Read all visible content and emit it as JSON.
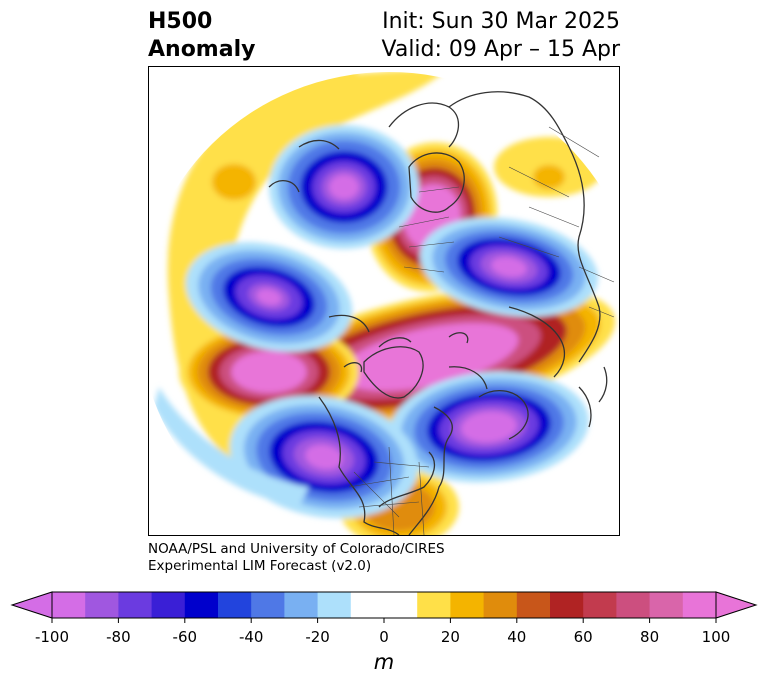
{
  "title": {
    "line1": "H500",
    "line2": "Anomaly",
    "init": "Init: Sun 30 Mar 2025",
    "valid": "Valid: 09 Apr – 15 Apr"
  },
  "credit": {
    "line1": "NOAA/PSL and University of Colorado/CIRES",
    "line2": "Experimental LIM Forecast (v2.0)"
  },
  "colorbar": {
    "unit": "m",
    "min": -100,
    "max": 100,
    "step": 10,
    "ticks": [
      "-100",
      "-80",
      "-60",
      "-40",
      "-20",
      "0",
      "20",
      "40",
      "60",
      "80",
      "100"
    ],
    "colors": [
      "#d46de6",
      "#a057e0",
      "#6b3be0",
      "#3a1fd6",
      "#0000cc",
      "#2244dd",
      "#4f78e6",
      "#79b0f2",
      "#ade0fb",
      "#ffffff",
      "#ffffff",
      "#ffe048",
      "#f4b400",
      "#e08c0c",
      "#c8561a",
      "#b02323",
      "#c23b4e",
      "#cc4f7f",
      "#d965aa",
      "#e874d8"
    ],
    "below_color": "#d46de6",
    "above_color": "#e874d8"
  },
  "anomaly_colors": {
    "neg_100": "#d46de6",
    "neg_90": "#a057e0",
    "neg_70": "#6b3be0",
    "neg_60": "#0000cc",
    "neg_40": "#4f78e6",
    "neg_20": "#79b0f2",
    "neg_10": "#ade0fb",
    "pos_10": "#ffe048",
    "pos_20": "#f4b400",
    "pos_40": "#e08c0c",
    "pos_60": "#b02323",
    "pos_80": "#cc4f7f",
    "pos_100": "#e874d8"
  }
}
